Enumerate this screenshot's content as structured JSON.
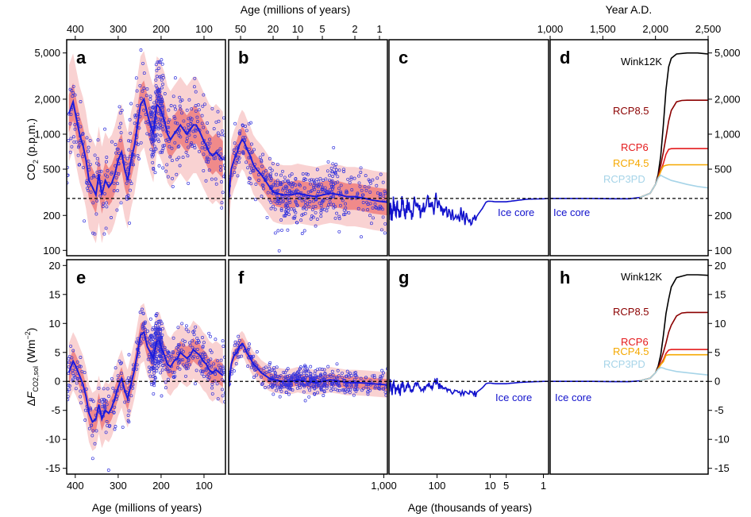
{
  "figure": {
    "top_axis_left_label": "Age (millions of years)",
    "top_axis_right_label": "Year A.D.",
    "bottom_axis_left_label": "Age (millions of years)",
    "bottom_axis_center_label": "Age (thousands of years)",
    "y_top_label": "CO",
    "y_top_label_sub": "2",
    "y_top_label_unit": " (p.p.m.)",
    "y_bottom_label_delta": "Δ",
    "y_bottom_label_f": "F",
    "y_bottom_label_sub": "CO2,sol",
    "y_bottom_label_unit": " (Wm",
    "y_bottom_label_sup": "−2",
    "y_bottom_label_close": ")"
  },
  "panel_letters": [
    "a",
    "b",
    "c",
    "d",
    "e",
    "f",
    "g",
    "h"
  ],
  "colors": {
    "proxy_points": "#3333dd",
    "loess_line": "#1a1add",
    "band_outer": "#f9d2d2",
    "band_inner": "#f08a8a",
    "ice_core": "#1111cc",
    "wink12k": "#000000",
    "rcp85": "#8b0000",
    "rcp6": "#e41a1c",
    "rcp45": "#f5a800",
    "rcp3pd": "#a6d4e8"
  },
  "chart_data": [
    {
      "panel": "a",
      "type": "scatter",
      "y_scale": "log",
      "xlabel": "Age (millions of years)",
      "ylabel": "CO2 (p.p.m.)",
      "xlim": [
        420,
        50
      ],
      "ylim": [
        90,
        6500
      ],
      "x_ticks": [
        400,
        300,
        200,
        100
      ],
      "y_ticks": [
        100,
        200,
        500,
        1000,
        2000,
        5000
      ],
      "y_tick_labels": [
        "100",
        "200",
        "500",
        "1,000",
        "2,000",
        "5,000"
      ],
      "reference_line": 280,
      "loess": {
        "x": [
          415,
          405,
          398,
          390,
          382,
          375,
          368,
          360,
          352,
          345,
          338,
          330,
          322,
          315,
          308,
          300,
          292,
          285,
          278,
          270,
          262,
          255,
          248,
          240,
          232,
          225,
          218,
          210,
          204,
          198,
          192,
          185,
          178,
          170,
          162,
          155,
          148,
          140,
          132,
          125,
          118,
          110,
          102,
          95,
          88,
          80,
          72,
          64,
          56
        ],
        "y": [
          1500,
          1900,
          1400,
          1000,
          800,
          600,
          400,
          350,
          300,
          450,
          300,
          400,
          350,
          380,
          450,
          600,
          700,
          500,
          400,
          600,
          800,
          1200,
          1800,
          2000,
          1500,
          1200,
          1000,
          1800,
          1700,
          1500,
          1300,
          1000,
          900,
          1000,
          1100,
          1200,
          1100,
          1000,
          1100,
          1200,
          1200,
          1050,
          900,
          800,
          700,
          650,
          700,
          650,
          600
        ]
      },
      "band_inner_factor": 1.45,
      "band_outer_factor": 2.6
    },
    {
      "panel": "b",
      "type": "scatter",
      "y_scale": "log",
      "top_xlabel": "Age (millions of years)",
      "xlim": [
        70,
        0.8
      ],
      "x_scale": "log",
      "x_ticks": [
        50,
        20,
        10,
        5,
        2,
        1
      ],
      "ylim": [
        90,
        6500
      ],
      "reference_line": 280,
      "loess": {
        "x": [
          70,
          65,
          60,
          55,
          52,
          48,
          45,
          42,
          38,
          35,
          32,
          28,
          25,
          22,
          20,
          18,
          15,
          12,
          10,
          8,
          6,
          5,
          4,
          3,
          2.5,
          2,
          1.5,
          1.2,
          1,
          0.8
        ],
        "y": [
          280,
          500,
          600,
          700,
          800,
          900,
          850,
          750,
          650,
          550,
          500,
          450,
          400,
          350,
          320,
          310,
          300,
          300,
          310,
          300,
          290,
          300,
          310,
          300,
          290,
          290,
          280,
          270,
          265,
          260
        ]
      },
      "band_inner_factor": 1.3,
      "band_outer_factor": 1.8
    },
    {
      "panel": "c",
      "type": "line",
      "y_scale": "log",
      "xlim": [
        800,
        0.8
      ],
      "x_scale": "log",
      "ylim": [
        90,
        6500
      ],
      "reference_line": 280,
      "series": [
        {
          "name": "Ice core",
          "x": [
            800,
            750,
            700,
            650,
            600,
            550,
            500,
            450,
            400,
            350,
            300,
            250,
            200,
            150,
            120,
            100,
            80,
            60,
            40,
            25,
            18,
            14,
            12,
            11,
            10,
            8,
            5,
            3,
            2,
            1,
            0.8
          ],
          "y": [
            200,
            260,
            190,
            270,
            200,
            250,
            190,
            280,
            200,
            260,
            190,
            270,
            210,
            260,
            240,
            270,
            230,
            210,
            200,
            190,
            195,
            230,
            260,
            265,
            265,
            262,
            262,
            270,
            276,
            278,
            280
          ]
        }
      ]
    },
    {
      "panel": "d",
      "type": "line",
      "y_scale": "log",
      "top_xlabel": "Year A.D.",
      "xlim": [
        1000,
        2500
      ],
      "x_ticks": [
        1000,
        1500,
        2000,
        2500
      ],
      "x_tick_labels": [
        "1,000",
        "1,500",
        "2,000",
        "2,500"
      ],
      "ylim": [
        90,
        6500
      ],
      "reference_line": 280,
      "series": [
        {
          "name": "Ice core",
          "x": [
            1000,
            1200,
            1400,
            1600,
            1750,
            1850
          ],
          "y": [
            280,
            280,
            280,
            278,
            278,
            285
          ]
        },
        {
          "name": "Wink12K",
          "x": [
            1850,
            1950,
            2000,
            2025,
            2050,
            2075,
            2100,
            2125,
            2150,
            2200,
            2300,
            2400,
            2500
          ],
          "y": [
            285,
            310,
            370,
            450,
            650,
            1200,
            2400,
            3800,
            4500,
            4900,
            5000,
            5000,
            4900
          ]
        },
        {
          "name": "RCP8.5",
          "x": [
            1850,
            1950,
            2000,
            2025,
            2050,
            2075,
            2100,
            2125,
            2150,
            2200,
            2250,
            2300,
            2500
          ],
          "y": [
            285,
            310,
            370,
            430,
            540,
            700,
            940,
            1300,
            1600,
            1900,
            1950,
            1960,
            1960
          ]
        },
        {
          "name": "RCP6",
          "x": [
            1850,
            1950,
            2000,
            2025,
            2050,
            2075,
            2100,
            2125,
            2150,
            2200,
            2500
          ],
          "y": [
            285,
            310,
            370,
            420,
            480,
            560,
            670,
            740,
            750,
            752,
            752
          ]
        },
        {
          "name": "RCP4.5",
          "x": [
            1850,
            1950,
            2000,
            2025,
            2050,
            2075,
            2100,
            2125,
            2150,
            2200,
            2500
          ],
          "y": [
            285,
            310,
            370,
            420,
            480,
            530,
            540,
            545,
            545,
            545,
            545
          ]
        },
        {
          "name": "RCP3PD",
          "x": [
            1850,
            1950,
            2000,
            2025,
            2050,
            2075,
            2100,
            2150,
            2200,
            2300,
            2400,
            2500
          ],
          "y": [
            285,
            310,
            370,
            420,
            443,
            430,
            420,
            400,
            390,
            370,
            355,
            345
          ]
        }
      ]
    },
    {
      "panel": "e",
      "type": "scatter",
      "xlabel": "Age (millions of years)",
      "ylabel": "ΔF CO2,sol (Wm−2)",
      "xlim": [
        420,
        50
      ],
      "ylim": [
        -16,
        21
      ],
      "x_ticks": [
        400,
        300,
        200,
        100
      ],
      "y_ticks": [
        -15,
        -10,
        -5,
        0,
        5,
        10,
        15,
        20
      ],
      "reference_line": 0,
      "loess": {
        "x": [
          415,
          405,
          398,
          390,
          382,
          375,
          368,
          360,
          352,
          345,
          338,
          330,
          322,
          315,
          308,
          300,
          292,
          285,
          278,
          270,
          262,
          255,
          248,
          240,
          232,
          225,
          218,
          210,
          204,
          198,
          192,
          185,
          178,
          170,
          162,
          155,
          148,
          140,
          132,
          125,
          118,
          110,
          102,
          95,
          88,
          80,
          72,
          64,
          56
        ],
        "y": [
          1.5,
          3.5,
          2.5,
          1.0,
          -0.5,
          -2.5,
          -5.5,
          -7.0,
          -6.5,
          -4.0,
          -6.5,
          -5.0,
          -5.5,
          -4.5,
          -3.0,
          -1.0,
          0.5,
          -1.5,
          -3.0,
          -0.5,
          2.0,
          5.0,
          8.0,
          8.5,
          6.0,
          5.0,
          4.0,
          7.0,
          7.0,
          5.5,
          4.5,
          3.0,
          2.5,
          3.5,
          4.0,
          5.0,
          4.5,
          4.0,
          4.5,
          5.5,
          5.0,
          4.5,
          3.5,
          3.0,
          2.0,
          1.5,
          2.0,
          1.5,
          1.0
        ]
      },
      "band_inner_half": 2.0,
      "band_outer_half": 5.0
    },
    {
      "panel": "f",
      "type": "scatter",
      "xlim": [
        70,
        0.8
      ],
      "x_scale": "log",
      "ylim": [
        -16,
        21
      ],
      "reference_line": 0,
      "loess": {
        "x": [
          70,
          65,
          60,
          55,
          52,
          48,
          45,
          42,
          38,
          35,
          32,
          28,
          25,
          22,
          20,
          18,
          15,
          12,
          10,
          8,
          6,
          5,
          4,
          3,
          2.5,
          2,
          1.5,
          1.2,
          1,
          0.8
        ],
        "y": [
          -1.0,
          3.0,
          4.5,
          5.0,
          6.0,
          6.5,
          6.0,
          5.0,
          4.0,
          3.0,
          2.5,
          1.5,
          1.0,
          0.5,
          0.3,
          0.2,
          0.0,
          0.0,
          0.3,
          0.0,
          -0.2,
          0.0,
          0.3,
          0.0,
          -0.2,
          -0.2,
          -0.3,
          -0.4,
          -0.5,
          -0.6
        ]
      },
      "band_inner_half": 1.0,
      "band_outer_half": 2.2
    },
    {
      "panel": "g",
      "type": "line",
      "xlabel": "Age (thousands of years)",
      "xlim": [
        800,
        0.8
      ],
      "x_scale": "log",
      "x_ticks": [
        1000,
        100,
        10,
        5,
        1
      ],
      "x_tick_labels": [
        "1,000",
        "100",
        "10",
        "5",
        "1"
      ],
      "ylim": [
        -16,
        21
      ],
      "reference_line": 0,
      "series": [
        {
          "name": "Ice core",
          "x": [
            800,
            750,
            700,
            650,
            600,
            550,
            500,
            450,
            400,
            350,
            300,
            250,
            200,
            150,
            120,
            100,
            80,
            60,
            40,
            25,
            18,
            14,
            12,
            11,
            10,
            8,
            5,
            3,
            2,
            1,
            0.8
          ],
          "y": [
            -1.8,
            -0.3,
            -2.0,
            -0.2,
            -1.8,
            -0.6,
            -2.0,
            0.0,
            -1.8,
            -0.4,
            -2.0,
            -0.2,
            -1.5,
            -0.4,
            -0.8,
            -0.2,
            -1.1,
            -1.5,
            -1.8,
            -2.0,
            -1.9,
            -1.1,
            -0.4,
            -0.3,
            -0.3,
            -0.4,
            -0.4,
            -0.2,
            -0.1,
            0.0,
            0.0
          ]
        }
      ]
    },
    {
      "panel": "h",
      "type": "line",
      "xlim": [
        1000,
        2500
      ],
      "ylim": [
        -16,
        21
      ],
      "reference_line": 0,
      "series": [
        {
          "name": "Ice core",
          "x": [
            1000,
            1200,
            1400,
            1600,
            1750,
            1850
          ],
          "y": [
            0.0,
            0.0,
            0.0,
            -0.05,
            -0.05,
            0.1
          ]
        },
        {
          "name": "Wink12K",
          "x": [
            1850,
            1950,
            2000,
            2025,
            2050,
            2075,
            2100,
            2125,
            2150,
            2200,
            2300,
            2400,
            2500
          ],
          "y": [
            0.1,
            0.55,
            1.5,
            2.6,
            4.6,
            7.9,
            11.7,
            14.2,
            16.3,
            17.9,
            18.4,
            18.4,
            18.3
          ]
        },
        {
          "name": "RCP8.5",
          "x": [
            1850,
            1950,
            2000,
            2025,
            2050,
            2075,
            2100,
            2125,
            2150,
            2200,
            2250,
            2300,
            2500
          ],
          "y": [
            0.1,
            0.55,
            1.5,
            2.3,
            3.6,
            5.0,
            6.6,
            8.5,
            9.7,
            11.3,
            11.8,
            11.9,
            11.9
          ]
        },
        {
          "name": "RCP6",
          "x": [
            1850,
            1950,
            2000,
            2025,
            2050,
            2075,
            2100,
            2125,
            2150,
            2200,
            2500
          ],
          "y": [
            0.1,
            0.55,
            1.5,
            2.2,
            2.9,
            3.7,
            4.8,
            5.4,
            5.5,
            5.5,
            5.5
          ]
        },
        {
          "name": "RCP4.5",
          "x": [
            1850,
            1950,
            2000,
            2025,
            2050,
            2075,
            2100,
            2125,
            2150,
            2200,
            2500
          ],
          "y": [
            0.1,
            0.55,
            1.5,
            2.2,
            2.9,
            3.4,
            4.5,
            4.6,
            4.6,
            4.6,
            4.6
          ]
        },
        {
          "name": "RCP3PD",
          "x": [
            1850,
            1950,
            2000,
            2025,
            2050,
            2075,
            2100,
            2150,
            2200,
            2300,
            2400,
            2500
          ],
          "y": [
            0.1,
            0.55,
            1.5,
            2.1,
            2.4,
            2.3,
            2.1,
            1.9,
            1.7,
            1.5,
            1.3,
            1.1
          ]
        }
      ]
    }
  ]
}
